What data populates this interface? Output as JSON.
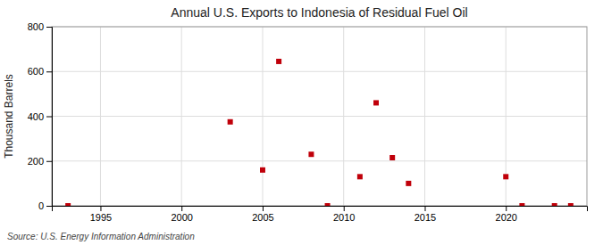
{
  "chart_data": {
    "type": "scatter",
    "title": "Annual U.S. Exports to Indonesia of Residual Fuel Oil",
    "ylabel": "Thousand Barrels",
    "source": "Source: U.S. Energy Information Administration",
    "x": [
      1993,
      2003,
      2005,
      2006,
      2008,
      2009,
      2011,
      2012,
      2013,
      2014,
      2020,
      2021,
      2023,
      2024
    ],
    "values": [
      0,
      375,
      160,
      645,
      230,
      0,
      130,
      460,
      215,
      100,
      130,
      0,
      0,
      0
    ],
    "color": "#c0000a",
    "marker": "square",
    "xlim": [
      1992,
      2025
    ],
    "xticks": [
      1995,
      2000,
      2005,
      2010,
      2015,
      2020
    ],
    "ylim": [
      0,
      800
    ],
    "yticks": [
      0,
      200,
      400,
      600,
      800
    ],
    "grid": true
  }
}
